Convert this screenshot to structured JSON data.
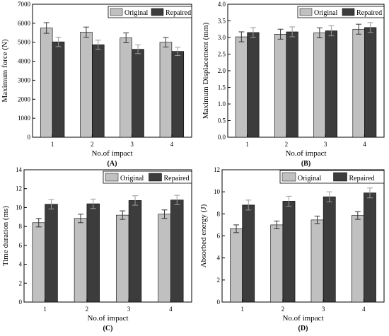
{
  "colors": {
    "original": "#c0c0c0",
    "repaired": "#3c3c3c",
    "errorbar": "#5a5a5a"
  },
  "legend": {
    "original": "Original",
    "repaired": "Repaired"
  },
  "chart_data": [
    {
      "type": "bar",
      "panel_label": "(A)",
      "categories": [
        "1",
        "2",
        "3",
        "4"
      ],
      "series": [
        {
          "name": "Original",
          "values": [
            5750,
            5530,
            5230,
            5000
          ],
          "errors": [
            280,
            270,
            260,
            250
          ]
        },
        {
          "name": "Repaired",
          "values": [
            5020,
            4870,
            4630,
            4520
          ],
          "errors": [
            250,
            240,
            230,
            220
          ]
        }
      ],
      "xlabel": "No.of impact",
      "ylabel": "Maximum force (N)",
      "ylim": [
        0,
        7000
      ],
      "yticks": [
        0,
        1000,
        2000,
        3000,
        4000,
        5000,
        6000,
        7000
      ],
      "legend_position": "top-right",
      "grid": false
    },
    {
      "type": "bar",
      "panel_label": "(B)",
      "categories": [
        "1",
        "2",
        "3",
        "4"
      ],
      "series": [
        {
          "name": "Original",
          "values": [
            3.02,
            3.1,
            3.14,
            3.25
          ],
          "errors": [
            0.15,
            0.15,
            0.15,
            0.15
          ]
        },
        {
          "name": "Repaired",
          "values": [
            3.15,
            3.17,
            3.2,
            3.3
          ],
          "errors": [
            0.15,
            0.15,
            0.15,
            0.15
          ]
        }
      ],
      "xlabel": "No.of impact",
      "ylabel": "Maximum Displacement (mm)",
      "ylim": [
        0,
        4.0
      ],
      "yticks": [
        "0.0",
        "0.5",
        "1.0",
        "1.5",
        "2.0",
        "2.5",
        "3.0",
        "3.5",
        "4.0"
      ],
      "legend_position": "top-right",
      "grid": false
    },
    {
      "type": "bar",
      "panel_label": "(C)",
      "categories": [
        "1",
        "2",
        "3",
        "4"
      ],
      "series": [
        {
          "name": "Original",
          "values": [
            8.4,
            8.85,
            9.2,
            9.3
          ],
          "errors": [
            0.45,
            0.45,
            0.45,
            0.45
          ]
        },
        {
          "name": "Repaired",
          "values": [
            10.35,
            10.4,
            10.75,
            10.8
          ],
          "errors": [
            0.5,
            0.5,
            0.5,
            0.5
          ]
        }
      ],
      "xlabel": "No.of impact",
      "ylabel": "Time duration (ms)",
      "ylim": [
        0,
        14
      ],
      "yticks": [
        0,
        2,
        4,
        6,
        8,
        10,
        12,
        14
      ],
      "legend_position": "top-right",
      "grid": false
    },
    {
      "type": "bar",
      "panel_label": "(D)",
      "categories": [
        "1",
        "2",
        "3",
        "4"
      ],
      "series": [
        {
          "name": "Original",
          "values": [
            6.65,
            7.0,
            7.45,
            7.85
          ],
          "errors": [
            0.35,
            0.35,
            0.35,
            0.35
          ]
        },
        {
          "name": "Repaired",
          "values": [
            8.8,
            9.15,
            9.55,
            9.9
          ],
          "errors": [
            0.45,
            0.45,
            0.45,
            0.45
          ]
        }
      ],
      "xlabel": "No.of impact",
      "ylabel": "Absorbed energy (J)",
      "ylim": [
        0,
        12
      ],
      "yticks": [
        0,
        2,
        4,
        6,
        8,
        10,
        12
      ],
      "legend_position": "top-right",
      "grid": false
    }
  ]
}
